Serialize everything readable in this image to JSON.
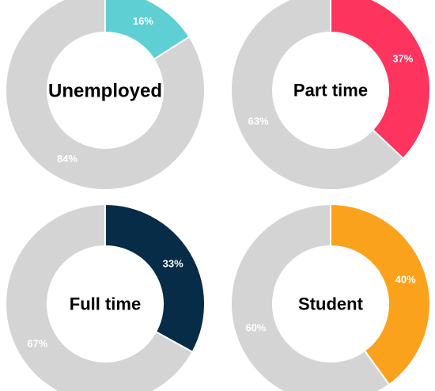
{
  "chart_data": [
    {
      "type": "pie",
      "title": "Unemployed",
      "slices": [
        {
          "label": "16%",
          "value": 16,
          "color": "#5ecfd3"
        },
        {
          "label": "84%",
          "value": 84,
          "color": "#d4d4d4"
        }
      ]
    },
    {
      "type": "pie",
      "title": "Part time",
      "slices": [
        {
          "label": "37%",
          "value": 37,
          "color": "#fd355e"
        },
        {
          "label": "63%",
          "value": 63,
          "color": "#d4d4d4"
        }
      ]
    },
    {
      "type": "pie",
      "title": "Full time",
      "slices": [
        {
          "label": "33%",
          "value": 33,
          "color": "#062c47"
        },
        {
          "label": "67%",
          "value": 67,
          "color": "#d4d4d4"
        }
      ]
    },
    {
      "type": "pie",
      "title": "Student",
      "slices": [
        {
          "label": "40%",
          "value": 40,
          "color": "#fba21d"
        },
        {
          "label": "60%",
          "value": 60,
          "color": "#d4d4d4"
        }
      ]
    }
  ]
}
